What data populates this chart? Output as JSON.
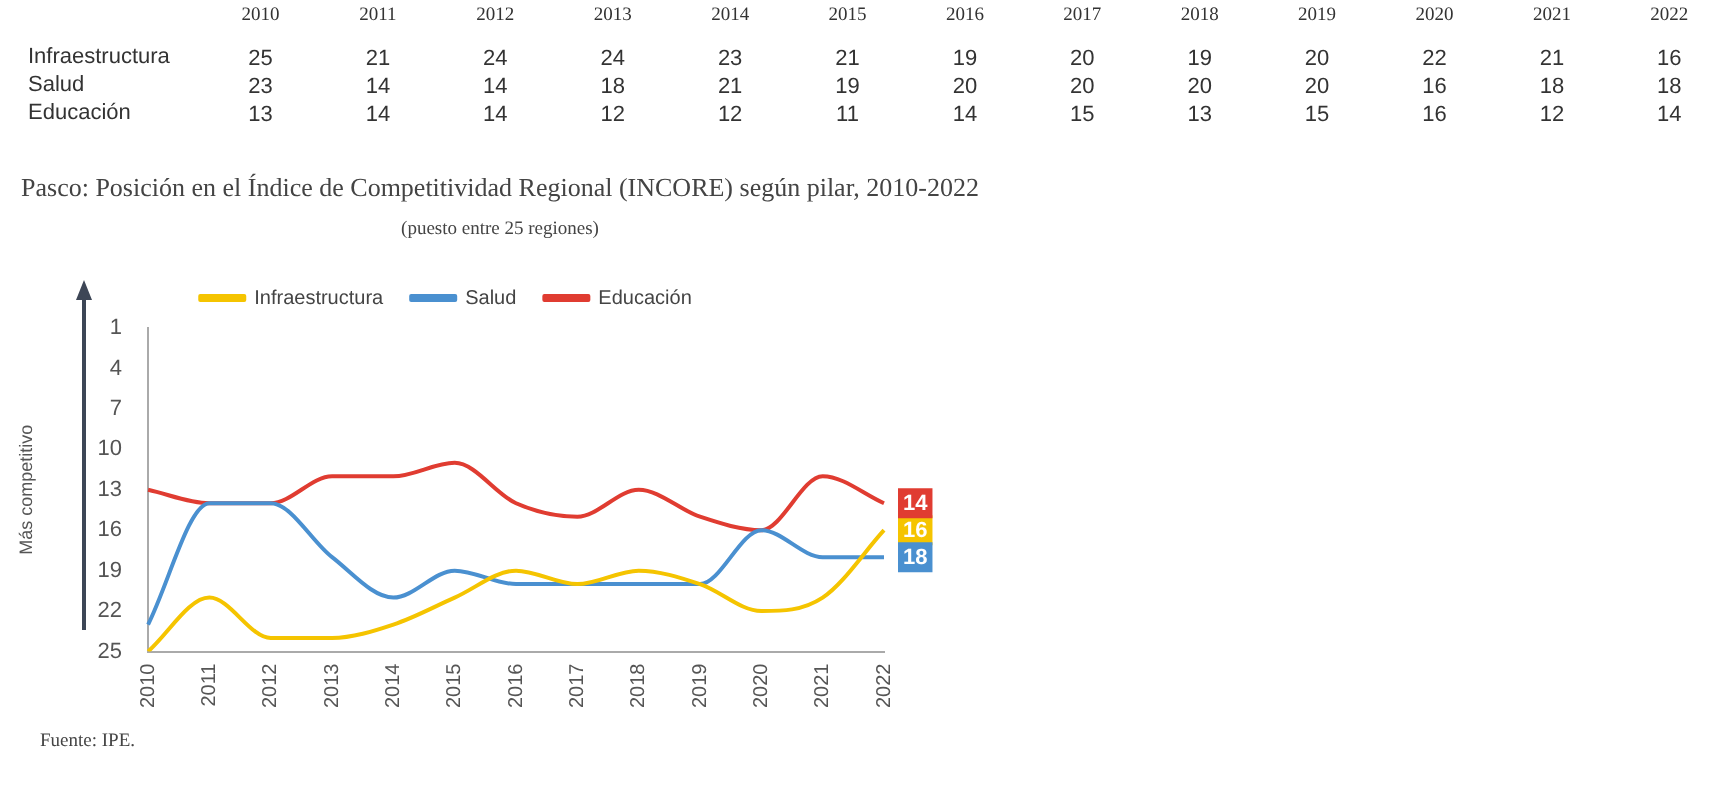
{
  "chart_data": [
    {
      "type": "heatmap",
      "categories": [
        "2010",
        "2011",
        "2012",
        "2013",
        "2014",
        "2015",
        "2016",
        "2017",
        "2018",
        "2019",
        "2020",
        "2021",
        "2022"
      ],
      "y_categories": [
        "Infraestructura",
        "Salud",
        "Educación"
      ],
      "cells": [
        [
          25,
          21,
          24,
          24,
          23,
          21,
          19,
          20,
          19,
          20,
          22,
          21,
          16
        ],
        [
          23,
          14,
          14,
          18,
          21,
          19,
          20,
          20,
          20,
          20,
          16,
          18,
          18
        ],
        [
          13,
          14,
          14,
          12,
          12,
          11,
          14,
          15,
          13,
          15,
          16,
          12,
          14
        ]
      ],
      "data_labels": true
    },
    {
      "type": "line",
      "title": "Pasco: Posición en el Índice de Competitividad Regional (INCORE) según pilar, 2010-2022",
      "subtitle": "(puesto entre 25 regiones)",
      "ylabel": "Más competitivo",
      "annotations": [
        "Fuente: IPE."
      ],
      "categories": [
        "2010",
        "2011",
        "2012",
        "2013",
        "2014",
        "2015",
        "2016",
        "2017",
        "2018",
        "2019",
        "2020",
        "2021",
        "2022"
      ],
      "series": [
        {
          "name": "Infraestructura",
          "color": "#f5c400",
          "values": [
            25,
            21,
            24,
            24,
            23,
            21,
            19,
            20,
            19,
            20,
            22,
            21,
            16
          ],
          "value_labels": [
            null,
            null,
            null,
            null,
            null,
            null,
            null,
            null,
            null,
            null,
            null,
            null,
            "16"
          ]
        },
        {
          "name": "Salud",
          "color": "#4a90d0",
          "values": [
            23,
            14,
            14,
            18,
            21,
            19,
            20,
            20,
            20,
            20,
            16,
            18,
            18
          ],
          "value_labels": [
            null,
            null,
            null,
            null,
            null,
            null,
            null,
            null,
            null,
            null,
            null,
            null,
            "18"
          ]
        },
        {
          "name": "Educación",
          "color": "#e03c31",
          "values": [
            13,
            14,
            14,
            12,
            12,
            11,
            14,
            15,
            13,
            15,
            16,
            12,
            14
          ],
          "value_labels": [
            null,
            null,
            null,
            null,
            null,
            null,
            null,
            null,
            null,
            null,
            null,
            null,
            "14"
          ]
        }
      ],
      "ylim": [
        25,
        1
      ],
      "yticks": [
        1,
        4,
        7,
        10,
        13,
        16,
        19,
        22,
        25
      ],
      "grid": false,
      "legend": "top",
      "marker": "none",
      "line_style": "solid"
    }
  ]
}
